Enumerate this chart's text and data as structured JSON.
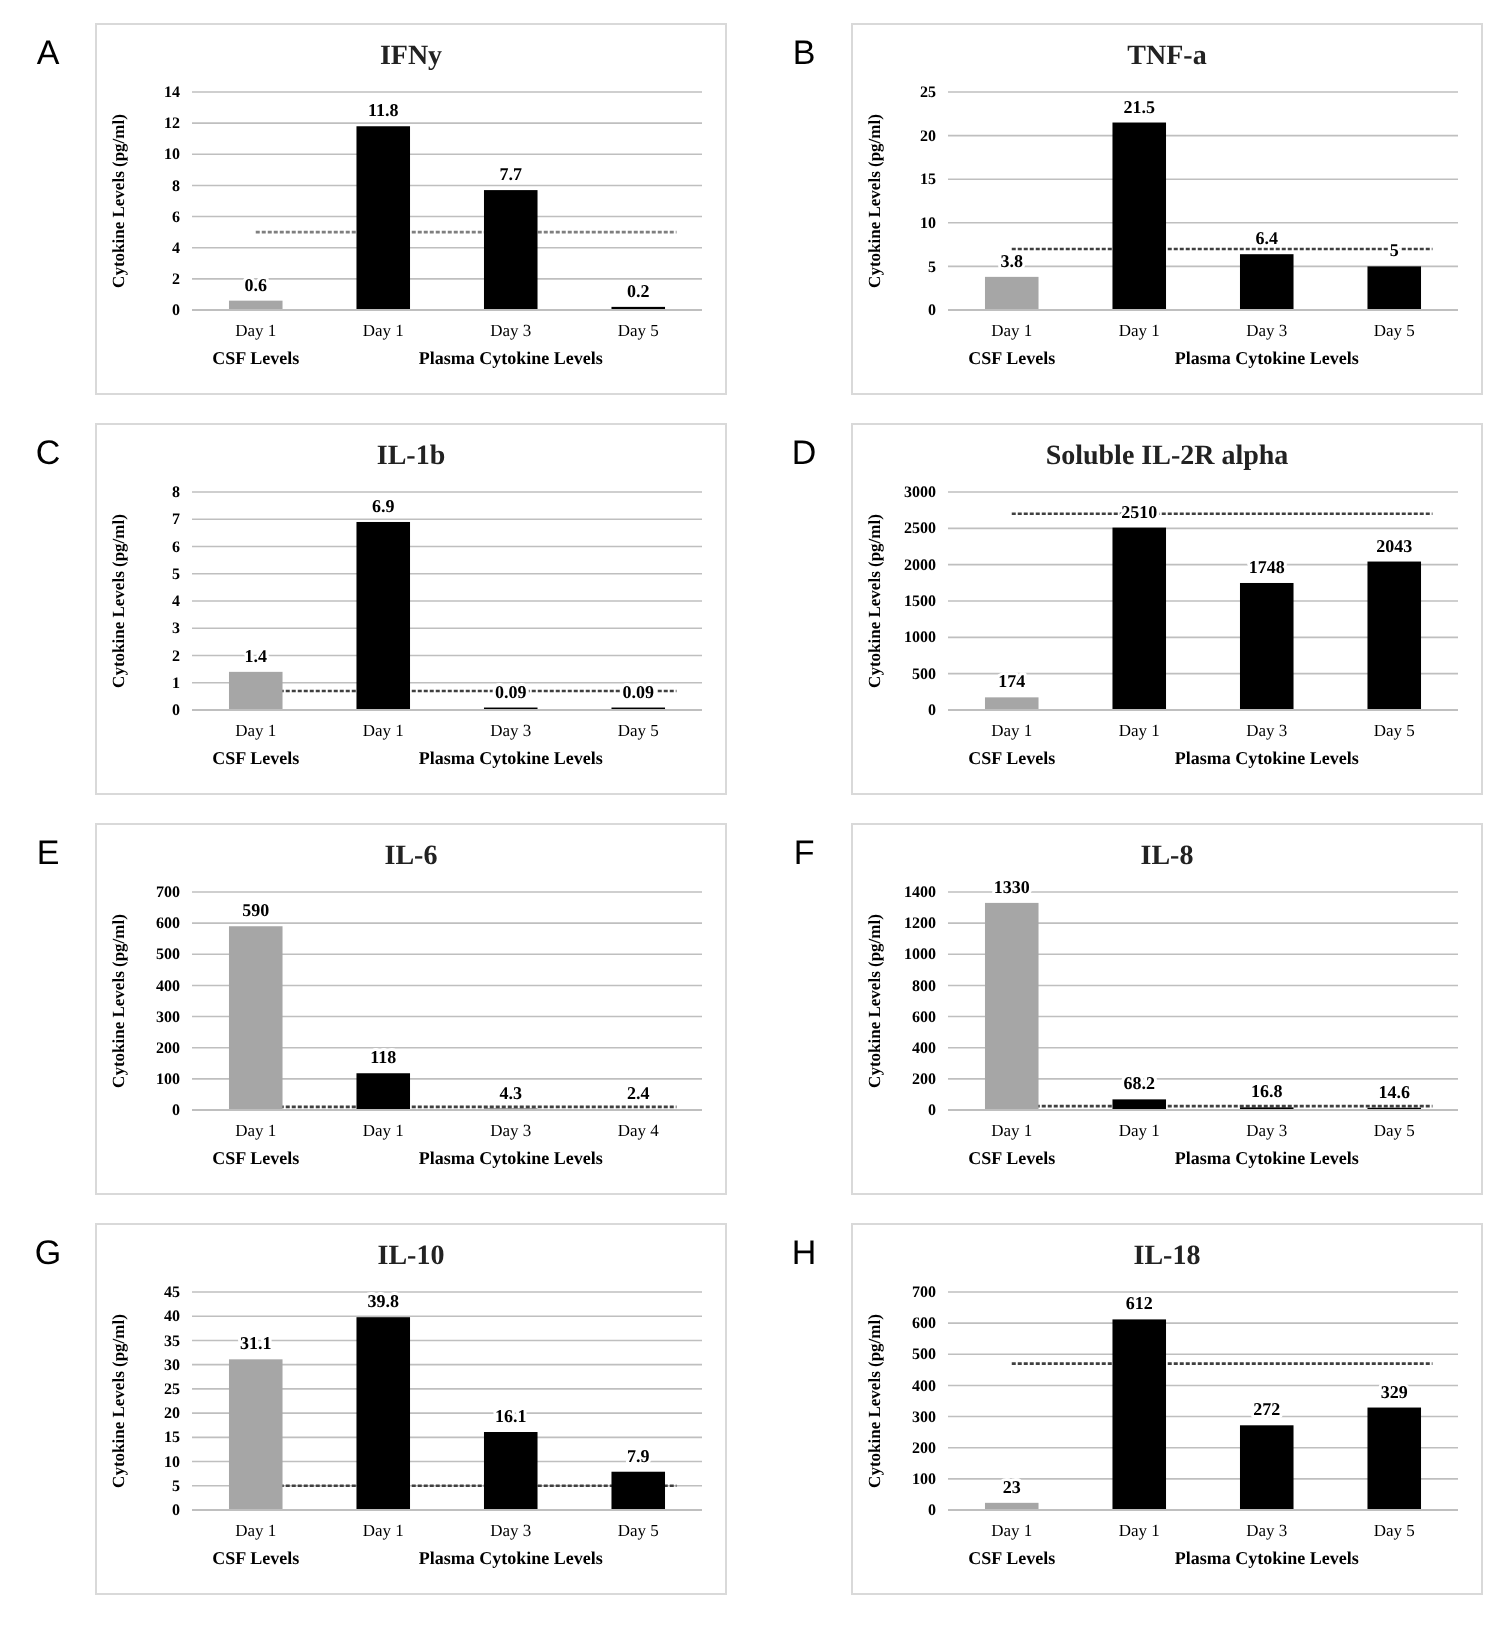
{
  "chart_data": [
    {
      "type": "bar",
      "title": "IFNy",
      "ylabel": "Cytokine Levels (pg/ml)",
      "annotations": [
        "A",
        "CSF Levels",
        "Plasma Cytokine Levels"
      ],
      "categories": [
        "Day 1",
        "Day 1",
        "Day 3",
        "Day 5"
      ],
      "values": [
        0.6,
        11.8,
        7.7,
        0.2
      ],
      "colors": [
        "#a6a6a6",
        "#000000",
        "#000000",
        "#000000"
      ],
      "ylim": [
        0,
        14
      ],
      "yticks": [
        0,
        2,
        4,
        6,
        8,
        10,
        12,
        14
      ],
      "grid": "y",
      "data_labels": true,
      "ref_lines": [
        {
          "axis": "y",
          "value": 5,
          "line_style": "dotted",
          "color": "#7f7f7f"
        }
      ]
    },
    {
      "type": "bar",
      "title": "TNF-a",
      "ylabel": "Cytokine Levels (pg/ml)",
      "annotations": [
        "B",
        "CSF Levels",
        "Plasma Cytokine Levels"
      ],
      "categories": [
        "Day 1",
        "Day 1",
        "Day 3",
        "Day 5"
      ],
      "values": [
        3.8,
        21.5,
        6.4,
        5
      ],
      "colors": [
        "#a6a6a6",
        "#000000",
        "#000000",
        "#000000"
      ],
      "ylim": [
        0,
        25
      ],
      "yticks": [
        0,
        5,
        10,
        15,
        20,
        25
      ],
      "grid": "y",
      "data_labels": true,
      "ref_lines": [
        {
          "axis": "y",
          "value": 7,
          "line_style": "dotted",
          "color": "#404040"
        }
      ]
    },
    {
      "type": "bar",
      "title": "IL-1b",
      "ylabel": "Cytokine Levels (pg/ml)",
      "annotations": [
        "C",
        "CSF Levels",
        "Plasma Cytokine Levels"
      ],
      "categories": [
        "Day 1",
        "Day 1",
        "Day 3",
        "Day 5"
      ],
      "values": [
        1.4,
        6.9,
        0.09,
        0.09
      ],
      "colors": [
        "#a6a6a6",
        "#000000",
        "#000000",
        "#000000"
      ],
      "ylim": [
        0,
        8
      ],
      "yticks": [
        0,
        1,
        2,
        3,
        4,
        5,
        6,
        7,
        8
      ],
      "grid": "y",
      "data_labels": true,
      "ref_lines": [
        {
          "axis": "y",
          "value": 0.7,
          "line_style": "dotted",
          "color": "#404040"
        }
      ]
    },
    {
      "type": "bar",
      "title": "Soluble IL-2R alpha",
      "ylabel": "Cytokine Levels (pg/ml)",
      "annotations": [
        "D",
        "CSF Levels",
        "Plasma Cytokine Levels"
      ],
      "categories": [
        "Day 1",
        "Day 1",
        "Day 3",
        "Day 5"
      ],
      "values": [
        174,
        2510,
        1748,
        2043
      ],
      "colors": [
        "#a6a6a6",
        "#000000",
        "#000000",
        "#000000"
      ],
      "ylim": [
        0,
        3000
      ],
      "yticks": [
        0,
        500,
        1000,
        1500,
        2000,
        2500,
        3000
      ],
      "grid": "y",
      "data_labels": true,
      "ref_lines": [
        {
          "axis": "y",
          "value": 2700,
          "line_style": "dotted",
          "color": "#404040"
        }
      ]
    },
    {
      "type": "bar",
      "title": "IL-6",
      "ylabel": "Cytokine Levels (pg/ml)",
      "annotations": [
        "E",
        "CSF Levels",
        "Plasma Cytokine Levels"
      ],
      "categories": [
        "Day 1",
        "Day 1",
        "Day 3",
        "Day 4"
      ],
      "values": [
        590,
        118,
        4.3,
        2.4
      ],
      "colors": [
        "#a6a6a6",
        "#000000",
        "#000000",
        "#000000"
      ],
      "ylim": [
        0,
        700
      ],
      "yticks": [
        0,
        100,
        200,
        300,
        400,
        500,
        600,
        700
      ],
      "grid": "y",
      "data_labels": true,
      "ref_lines": [
        {
          "axis": "y",
          "value": 10,
          "line_style": "dotted",
          "color": "#404040"
        }
      ]
    },
    {
      "type": "bar",
      "title": "IL-8",
      "ylabel": "Cytokine Levels (pg/ml)",
      "annotations": [
        "F",
        "CSF Levels",
        "Plasma Cytokine Levels"
      ],
      "categories": [
        "Day 1",
        "Day 1",
        "Day 3",
        "Day 5"
      ],
      "values": [
        1330,
        68.2,
        16.8,
        14.6
      ],
      "colors": [
        "#a6a6a6",
        "#000000",
        "#000000",
        "#000000"
      ],
      "ylim": [
        0,
        1400
      ],
      "yticks": [
        0,
        200,
        400,
        600,
        800,
        1000,
        1200,
        1400
      ],
      "grid": "y",
      "data_labels": true,
      "ref_lines": [
        {
          "axis": "y",
          "value": 25,
          "line_style": "dotted",
          "color": "#404040"
        }
      ]
    },
    {
      "type": "bar",
      "title": "IL-10",
      "ylabel": "Cytokine Levels (pg/ml)",
      "annotations": [
        "G",
        "CSF Levels",
        "Plasma Cytokine Levels"
      ],
      "categories": [
        "Day 1",
        "Day 1",
        "Day 3",
        "Day 5"
      ],
      "values": [
        31.1,
        39.8,
        16.1,
        7.9
      ],
      "colors": [
        "#a6a6a6",
        "#000000",
        "#000000",
        "#000000"
      ],
      "ylim": [
        0,
        45
      ],
      "yticks": [
        0,
        5,
        10,
        15,
        20,
        25,
        30,
        35,
        40,
        45
      ],
      "grid": "y",
      "data_labels": true,
      "ref_lines": [
        {
          "axis": "y",
          "value": 5,
          "line_style": "dotted",
          "color": "#404040"
        }
      ]
    },
    {
      "type": "bar",
      "title": "IL-18",
      "ylabel": "Cytokine Levels (pg/ml)",
      "annotations": [
        "H",
        "CSF Levels",
        "Plasma Cytokine Levels"
      ],
      "categories": [
        "Day 1",
        "Day 1",
        "Day 3",
        "Day 5"
      ],
      "values": [
        23,
        612,
        272,
        329
      ],
      "colors": [
        "#a6a6a6",
        "#000000",
        "#000000",
        "#000000"
      ],
      "ylim": [
        0,
        700
      ],
      "yticks": [
        0,
        100,
        200,
        300,
        400,
        500,
        600,
        700
      ],
      "grid": "y",
      "data_labels": true,
      "ref_lines": [
        {
          "axis": "y",
          "value": 470,
          "line_style": "dotted",
          "color": "#404040"
        }
      ]
    }
  ]
}
